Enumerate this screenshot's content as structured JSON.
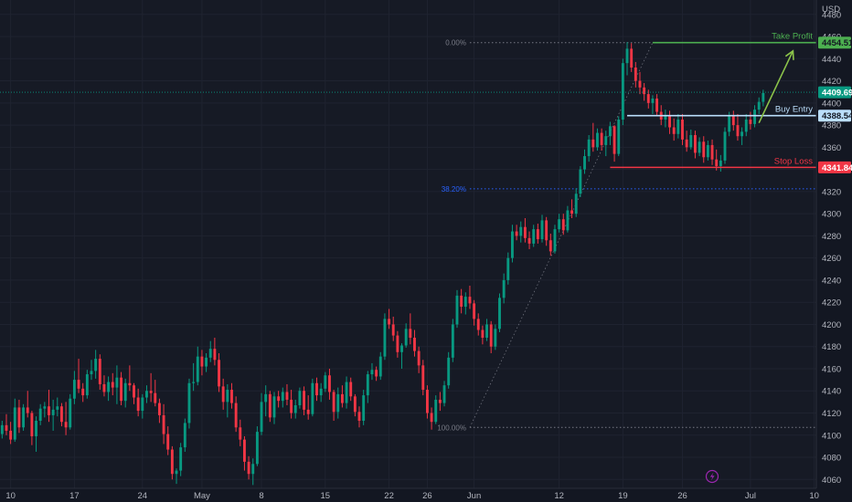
{
  "chart_data": {
    "type": "candlestick",
    "currency": "USD",
    "y_axis": {
      "ticks": [
        4060,
        4080,
        4100,
        4120,
        4140,
        4160,
        4180,
        4200,
        4220,
        4240,
        4260,
        4280,
        4300,
        4320,
        4340,
        4360,
        4380,
        4400,
        4420,
        4440,
        4460,
        4480
      ],
      "ylim": [
        4052,
        4493
      ]
    },
    "x_axis": {
      "labels": [
        "10",
        "17",
        "24",
        "May",
        "8",
        "15",
        "22",
        "26",
        "Jun",
        "12",
        "19",
        "26",
        "Jul",
        "10"
      ],
      "label_indices": [
        2,
        17,
        33,
        47,
        61,
        76,
        91,
        100,
        111,
        131,
        146,
        160,
        176,
        191
      ]
    },
    "bars_visible": 192,
    "candles": [
      [
        4101,
        4113,
        4097,
        4109
      ],
      [
        4109,
        4119,
        4100,
        4104
      ],
      [
        4104,
        4112,
        4092,
        4096
      ],
      [
        4096,
        4133,
        4094,
        4125
      ],
      [
        4125,
        4132,
        4102,
        4107
      ],
      [
        4107,
        4128,
        4104,
        4125
      ],
      [
        4125,
        4140,
        4116,
        4120
      ],
      [
        4120,
        4122,
        4091,
        4099
      ],
      [
        4099,
        4117,
        4085,
        4113
      ],
      [
        4113,
        4128,
        4109,
        4124
      ],
      [
        4124,
        4130,
        4116,
        4126
      ],
      [
        4126,
        4141,
        4112,
        4118
      ],
      [
        4118,
        4132,
        4104,
        4123
      ],
      [
        4123,
        4134,
        4117,
        4126
      ],
      [
        4126,
        4129,
        4108,
        4112
      ],
      [
        4112,
        4130,
        4100,
        4107
      ],
      [
        4107,
        4137,
        4105,
        4133
      ],
      [
        4133,
        4158,
        4128,
        4150
      ],
      [
        4150,
        4169,
        4138,
        4142
      ],
      [
        4142,
        4147,
        4130,
        4136
      ],
      [
        4136,
        4159,
        4133,
        4155
      ],
      [
        4155,
        4168,
        4150,
        4158
      ],
      [
        4158,
        4177,
        4151,
        4169
      ],
      [
        4169,
        4173,
        4141,
        4146
      ],
      [
        4146,
        4154,
        4135,
        4139
      ],
      [
        4139,
        4153,
        4131,
        4148
      ],
      [
        4148,
        4156,
        4136,
        4143
      ],
      [
        4143,
        4163,
        4128,
        4152
      ],
      [
        4152,
        4157,
        4127,
        4131
      ],
      [
        4131,
        4151,
        4125,
        4147
      ],
      [
        4147,
        4163,
        4140,
        4145
      ],
      [
        4145,
        4147,
        4128,
        4134
      ],
      [
        4134,
        4142,
        4117,
        4122
      ],
      [
        4122,
        4137,
        4115,
        4134
      ],
      [
        4134,
        4145,
        4129,
        4140
      ],
      [
        4140,
        4156,
        4130,
        4138
      ],
      [
        4138,
        4150,
        4126,
        4129
      ],
      [
        4129,
        4133,
        4111,
        4118
      ],
      [
        4118,
        4128,
        4092,
        4101
      ],
      [
        4101,
        4108,
        4082,
        4087
      ],
      [
        4087,
        4090,
        4060,
        4065
      ],
      [
        4065,
        4070,
        4056,
        4068
      ],
      [
        4068,
        4093,
        4063,
        4089
      ],
      [
        4089,
        4115,
        4085,
        4111
      ],
      [
        4111,
        4151,
        4106,
        4147
      ],
      [
        4147,
        4165,
        4140,
        4148
      ],
      [
        4148,
        4180,
        4145,
        4171
      ],
      [
        4171,
        4177,
        4154,
        4162
      ],
      [
        4162,
        4174,
        4157,
        4170
      ],
      [
        4170,
        4185,
        4166,
        4178
      ],
      [
        4178,
        4188,
        4163,
        4168
      ],
      [
        4168,
        4174,
        4139,
        4144
      ],
      [
        4144,
        4151,
        4123,
        4130
      ],
      [
        4130,
        4146,
        4116,
        4141
      ],
      [
        4141,
        4147,
        4124,
        4129
      ],
      [
        4129,
        4135,
        4103,
        4107
      ],
      [
        4107,
        4114,
        4090,
        4096
      ],
      [
        4096,
        4099,
        4068,
        4076
      ],
      [
        4076,
        4081,
        4060,
        4065
      ],
      [
        4065,
        4079,
        4055,
        4074
      ],
      [
        4074,
        4108,
        4072,
        4103
      ],
      [
        4103,
        4138,
        4100,
        4130
      ],
      [
        4130,
        4145,
        4117,
        4137
      ],
      [
        4137,
        4140,
        4112,
        4116
      ],
      [
        4116,
        4139,
        4110,
        4135
      ],
      [
        4135,
        4140,
        4125,
        4131
      ],
      [
        4131,
        4143,
        4125,
        4139
      ],
      [
        4139,
        4146,
        4127,
        4132
      ],
      [
        4132,
        4141,
        4115,
        4120
      ],
      [
        4120,
        4132,
        4115,
        4127
      ],
      [
        4127,
        4143,
        4124,
        4140
      ],
      [
        4140,
        4144,
        4118,
        4123
      ],
      [
        4123,
        4136,
        4114,
        4119
      ],
      [
        4119,
        4151,
        4117,
        4147
      ],
      [
        4147,
        4152,
        4131,
        4136
      ],
      [
        4136,
        4147,
        4130,
        4142
      ],
      [
        4142,
        4157,
        4139,
        4154
      ],
      [
        4154,
        4160,
        4132,
        4139
      ],
      [
        4139,
        4141,
        4113,
        4121
      ],
      [
        4121,
        4143,
        4115,
        4137
      ],
      [
        4137,
        4145,
        4125,
        4129
      ],
      [
        4129,
        4153,
        4124,
        4148
      ],
      [
        4148,
        4152,
        4131,
        4135
      ],
      [
        4135,
        4137,
        4117,
        4121
      ],
      [
        4121,
        4126,
        4107,
        4113
      ],
      [
        4113,
        4141,
        4109,
        4136
      ],
      [
        4136,
        4158,
        4129,
        4155
      ],
      [
        4155,
        4165,
        4150,
        4159
      ],
      [
        4159,
        4162,
        4149,
        4153
      ],
      [
        4153,
        4175,
        4150,
        4171
      ],
      [
        4171,
        4210,
        4168,
        4205
      ],
      [
        4205,
        4214,
        4196,
        4200
      ],
      [
        4200,
        4207,
        4185,
        4190
      ],
      [
        4190,
        4194,
        4170,
        4175
      ],
      [
        4175,
        4183,
        4160,
        4181
      ],
      [
        4181,
        4201,
        4179,
        4196
      ],
      [
        4196,
        4210,
        4182,
        4188
      ],
      [
        4188,
        4195,
        4171,
        4176
      ],
      [
        4176,
        4180,
        4156,
        4163
      ],
      [
        4163,
        4168,
        4136,
        4141
      ],
      [
        4141,
        4145,
        4115,
        4120
      ],
      [
        4120,
        4125,
        4105,
        4112
      ],
      [
        4112,
        4136,
        4110,
        4132
      ],
      [
        4132,
        4139,
        4122,
        4129
      ],
      [
        4129,
        4149,
        4126,
        4145
      ],
      [
        4145,
        4175,
        4142,
        4170
      ],
      [
        4170,
        4205,
        4166,
        4200
      ],
      [
        4200,
        4231,
        4197,
        4226
      ],
      [
        4226,
        4232,
        4210,
        4216
      ],
      [
        4216,
        4229,
        4209,
        4225
      ],
      [
        4225,
        4235,
        4214,
        4219
      ],
      [
        4219,
        4222,
        4199,
        4205
      ],
      [
        4205,
        4210,
        4190,
        4195
      ],
      [
        4195,
        4199,
        4182,
        4188
      ],
      [
        4188,
        4205,
        4185,
        4200
      ],
      [
        4200,
        4203,
        4174,
        4180
      ],
      [
        4180,
        4200,
        4177,
        4196
      ],
      [
        4196,
        4228,
        4193,
        4224
      ],
      [
        4224,
        4246,
        4219,
        4240
      ],
      [
        4240,
        4265,
        4236,
        4260
      ],
      [
        4260,
        4290,
        4256,
        4284
      ],
      [
        4284,
        4290,
        4276,
        4280
      ],
      [
        4280,
        4293,
        4274,
        4288
      ],
      [
        4288,
        4296,
        4274,
        4278
      ],
      [
        4278,
        4284,
        4268,
        4273
      ],
      [
        4273,
        4290,
        4270,
        4286
      ],
      [
        4286,
        4291,
        4273,
        4277
      ],
      [
        4277,
        4299,
        4274,
        4294
      ],
      [
        4294,
        4297,
        4271,
        4276
      ],
      [
        4276,
        4282,
        4262,
        4266
      ],
      [
        4266,
        4290,
        4264,
        4286
      ],
      [
        4286,
        4300,
        4283,
        4295
      ],
      [
        4295,
        4300,
        4281,
        4285
      ],
      [
        4285,
        4307,
        4283,
        4303
      ],
      [
        4303,
        4313,
        4296,
        4300
      ],
      [
        4300,
        4323,
        4297,
        4318
      ],
      [
        4318,
        4343,
        4315,
        4340
      ],
      [
        4340,
        4358,
        4336,
        4352
      ],
      [
        4352,
        4371,
        4347,
        4367
      ],
      [
        4367,
        4382,
        4356,
        4360
      ],
      [
        4360,
        4377,
        4357,
        4373
      ],
      [
        4373,
        4377,
        4357,
        4362
      ],
      [
        4362,
        4375,
        4352,
        4370
      ],
      [
        4370,
        4383,
        4362,
        4379
      ],
      [
        4379,
        4380,
        4347,
        4354
      ],
      [
        4354,
        4388,
        4352,
        4385
      ],
      [
        4385,
        4440,
        4380,
        4436
      ],
      [
        4436,
        4455,
        4425,
        4449
      ],
      [
        4449,
        4454,
        4428,
        4432
      ],
      [
        4432,
        4437,
        4414,
        4420
      ],
      [
        4420,
        4428,
        4408,
        4414
      ],
      [
        4414,
        4418,
        4402,
        4408
      ],
      [
        4408,
        4412,
        4395,
        4400
      ],
      [
        4400,
        4407,
        4390,
        4404
      ],
      [
        4404,
        4408,
        4388,
        4392
      ],
      [
        4392,
        4398,
        4380,
        4385
      ],
      [
        4385,
        4394,
        4378,
        4389
      ],
      [
        4389,
        4393,
        4372,
        4378
      ],
      [
        4378,
        4386,
        4366,
        4372
      ],
      [
        4372,
        4390,
        4368,
        4385
      ],
      [
        4385,
        4390,
        4362,
        4367
      ],
      [
        4367,
        4375,
        4356,
        4360
      ],
      [
        4360,
        4376,
        4358,
        4371
      ],
      [
        4371,
        4375,
        4350,
        4355
      ],
      [
        4355,
        4369,
        4352,
        4365
      ],
      [
        4365,
        4370,
        4346,
        4351
      ],
      [
        4351,
        4366,
        4348,
        4362
      ],
      [
        4362,
        4367,
        4344,
        4349
      ],
      [
        4349,
        4358,
        4339,
        4343
      ],
      [
        4343,
        4353,
        4338,
        4348
      ],
      [
        4348,
        4378,
        4345,
        4374
      ],
      [
        4374,
        4392,
        4370,
        4388
      ],
      [
        4388,
        4393,
        4375,
        4380
      ],
      [
        4380,
        4390,
        4366,
        4370
      ],
      [
        4370,
        4378,
        4362,
        4374
      ],
      [
        4374,
        4390,
        4370,
        4385
      ],
      [
        4385,
        4392,
        4376,
        4381
      ],
      [
        4381,
        4398,
        4378,
        4394
      ],
      [
        4394,
        4405,
        4390,
        4401
      ],
      [
        4401,
        4412,
        4397,
        4409
      ]
    ],
    "levels": {
      "take_profit": {
        "label": "Take Profit",
        "price_label": "4454.51",
        "price": 4454.51,
        "color": "#4caf50"
      },
      "buy_entry": {
        "label": "Buy Entry",
        "price_label": "4388.54",
        "price": 4388.54,
        "color": "#bbdefb"
      },
      "stop_loss": {
        "label": "Stop Loss",
        "price_label": "4341.84",
        "price": 4341.84,
        "color": "#f23645"
      },
      "last_price": {
        "price_label": "4409.69",
        "price": 4409.69,
        "color": "#089981"
      }
    },
    "fibonacci": [
      {
        "label": "0.00%",
        "price": 4454.51,
        "color": "#787b86"
      },
      {
        "label": "38.20%",
        "price": 4322.5,
        "color": "#2962ff"
      },
      {
        "label": "100.00%",
        "price": 4107,
        "color": "#787b86"
      }
    ],
    "arrow": {
      "from_bar": 178,
      "from_price": 4382,
      "to_bar": 186,
      "to_price": 4447,
      "color": "#8bc34a"
    },
    "colors": {
      "up": "#089981",
      "down": "#f23645",
      "background": "#161a25",
      "grid": "#1f2330",
      "axis_text": "#b2b5be"
    }
  },
  "icons": {
    "bottom_toolbar": "lightning-icon"
  }
}
